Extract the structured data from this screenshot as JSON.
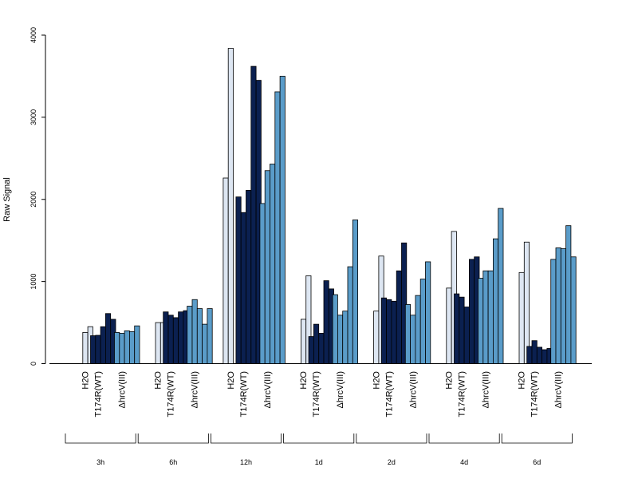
{
  "chart_data": {
    "type": "bar",
    "ylabel": "Raw Signal",
    "ylim": [
      0,
      4000
    ],
    "yticks": [
      "0",
      "1000",
      "2000",
      "3000",
      "4000"
    ],
    "grid": false,
    "legend": "none",
    "colors": {
      "H2O": "#dde6f2",
      "T174R(WT)": "#0b2050",
      "ΔhrcV(III)": "#5a9cc9",
      "bar_stroke": "#000000",
      "axis": "#000000"
    },
    "categories": [
      "H2O",
      "T174R(WT)",
      "ΔhrcV(III)"
    ],
    "time_groups": [
      {
        "label": "3h",
        "series": [
          {
            "name": "H2O",
            "values": [
              0,
              380,
              450
            ]
          },
          {
            "name": "T174R(WT)",
            "values": [
              340,
              345,
              450,
              610,
              540
            ]
          },
          {
            "name": "ΔhrcV(III)",
            "values": [
              380,
              370,
              400,
              390,
              460
            ]
          }
        ]
      },
      {
        "label": "6h",
        "series": [
          {
            "name": "H2O",
            "values": [
              0,
              500,
              500
            ]
          },
          {
            "name": "T174R(WT)",
            "values": [
              630,
              590,
              560,
              630,
              645
            ]
          },
          {
            "name": "ΔhrcV(III)",
            "values": [
              700,
              780,
              670,
              480,
              670
            ]
          }
        ]
      },
      {
        "label": "12h",
        "series": [
          {
            "name": "H2O",
            "values": [
              2260,
              3840,
              0
            ]
          },
          {
            "name": "T174R(WT)",
            "values": [
              2030,
              1840,
              2110,
              3620,
              3450
            ]
          },
          {
            "name": "ΔhrcV(III)",
            "values": [
              1950,
              2350,
              2430,
              3310,
              3500
            ]
          }
        ]
      },
      {
        "label": "1d",
        "series": [
          {
            "name": "H2O",
            "values": [
              0,
              540,
              1070
            ]
          },
          {
            "name": "T174R(WT)",
            "values": [
              330,
              480,
              370,
              1010,
              910
            ]
          },
          {
            "name": "ΔhrcV(III)",
            "values": [
              840,
              590,
              640,
              1180,
              1750
            ]
          }
        ]
      },
      {
        "label": "2d",
        "series": [
          {
            "name": "H2O",
            "values": [
              0,
              640,
              1310
            ]
          },
          {
            "name": "T174R(WT)",
            "values": [
              800,
              780,
              760,
              1130,
              1470
            ]
          },
          {
            "name": "ΔhrcV(III)",
            "values": [
              720,
              590,
              830,
              1030,
              1240
            ]
          }
        ]
      },
      {
        "label": "4d",
        "series": [
          {
            "name": "H2O",
            "values": [
              0,
              920,
              1610
            ]
          },
          {
            "name": "T174R(WT)",
            "values": [
              850,
              810,
              690,
              1270,
              1300
            ]
          },
          {
            "name": "ΔhrcV(III)",
            "values": [
              1040,
              1130,
              1130,
              1520,
              1890
            ]
          }
        ]
      },
      {
        "label": "6d",
        "series": [
          {
            "name": "H2O",
            "values": [
              0,
              1110,
              1480
            ]
          },
          {
            "name": "T174R(WT)",
            "values": [
              210,
              280,
              200,
              170,
              185
            ]
          },
          {
            "name": "ΔhrcV(III)",
            "values": [
              1270,
              1410,
              1400,
              1680,
              1300
            ]
          }
        ]
      }
    ]
  }
}
